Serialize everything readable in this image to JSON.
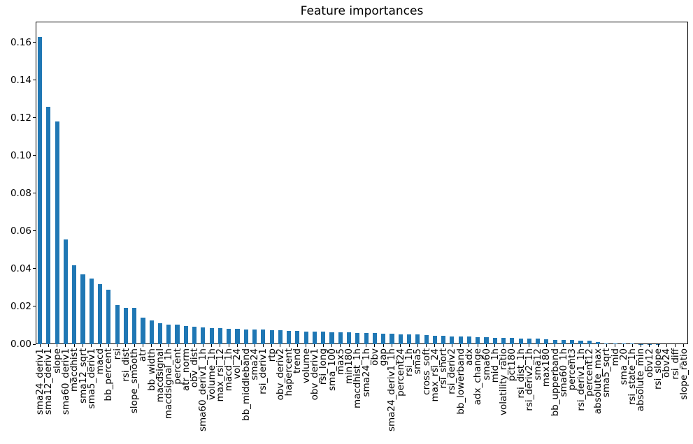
{
  "figure": {
    "background_color": "#ffffff",
    "text_color": "#000000",
    "spine_color": "#000000"
  },
  "chart_data": {
    "type": "bar",
    "title": "Feature importances",
    "xlabel": "",
    "ylabel": "",
    "grid": false,
    "legend": "none",
    "ylim": [
      0,
      0.171
    ],
    "yticks": [
      0.0,
      0.02,
      0.04,
      0.06,
      0.08,
      0.1,
      0.12,
      0.14,
      0.16
    ],
    "ytick_labels": [
      "0.00",
      "0.02",
      "0.04",
      "0.06",
      "0.08",
      "0.10",
      "0.12",
      "0.14",
      "0.16"
    ],
    "xtick_rotation_deg": 90,
    "bar_color": "#1f77b4",
    "bar_relative_width": 0.5,
    "categories": [
      "sma24_deriv1",
      "sma12_deriv1",
      "slope",
      "sma60_deriv1",
      "macdhist",
      "sma12_sqrt",
      "sma5_deriv1",
      "macd",
      "bb_percent",
      "rsi",
      "rsi_dist",
      "slope_smooth",
      "atr",
      "bb_width",
      "macdsignal",
      "macdsignal_1h",
      "percent",
      "atr_norm",
      "obv_dist",
      "sma60_deriv1_1h",
      "volume_1h",
      "max_rsi_12",
      "macd_1h",
      "vol_24",
      "bb_middleband",
      "sma24",
      "rsi_deriv1",
      "rtp",
      "obv_deriv2",
      "hapercent",
      "trend",
      "volume",
      "obv_deriv1",
      "rsi_long",
      "sma_100",
      "max5",
      "min180",
      "macdhist_1h",
      "sma24_1h",
      "obv",
      "gap",
      "sma24_deriv1_1h",
      "percent24",
      "rsi_1h",
      "sma5",
      "cross_soft",
      "max_rsi_24",
      "rsi_short",
      "rsi_deriv2",
      "bb_lowerband",
      "adx",
      "adx_change",
      "sma60",
      "mid_1h",
      "volatility_ratio",
      "pct180",
      "rsi_dist_1h",
      "rsi_deriv2_1h",
      "sma12",
      "max180",
      "bb_upperband",
      "sma60_1h",
      "percent3",
      "rsi_deriv1_1h",
      "percent12",
      "absolute_max",
      "sma5_sqrt",
      "mid",
      "sma_20",
      "rsi_state_1h",
      "absolute_min",
      "obv12",
      "rsi_slope",
      "obv24",
      "rsi_diff",
      "slope_ratio"
    ],
    "values": [
      0.163,
      0.126,
      0.118,
      0.0555,
      0.042,
      0.037,
      0.0349,
      0.0318,
      0.029,
      0.0209,
      0.0194,
      0.0192,
      0.014,
      0.0126,
      0.0112,
      0.0104,
      0.0103,
      0.0097,
      0.0091,
      0.0088,
      0.0086,
      0.0084,
      0.0082,
      0.008,
      0.0078,
      0.0077,
      0.0076,
      0.0075,
      0.0074,
      0.0072,
      0.007,
      0.0068,
      0.0067,
      0.0066,
      0.0064,
      0.0063,
      0.0062,
      0.006,
      0.0059,
      0.0058,
      0.0056,
      0.0055,
      0.0053,
      0.0052,
      0.005,
      0.0048,
      0.0046,
      0.0044,
      0.0042,
      0.004,
      0.0039,
      0.0038,
      0.0036,
      0.0035,
      0.0034,
      0.0033,
      0.0031,
      0.003,
      0.0028,
      0.0026,
      0.0024,
      0.0023,
      0.0021,
      0.002,
      0.0017,
      0.001,
      0.0004,
      0.0003,
      0.0002,
      0.0002,
      0.0001,
      0.0001,
      0.0001,
      0.0,
      0.0,
      0.0
    ]
  }
}
